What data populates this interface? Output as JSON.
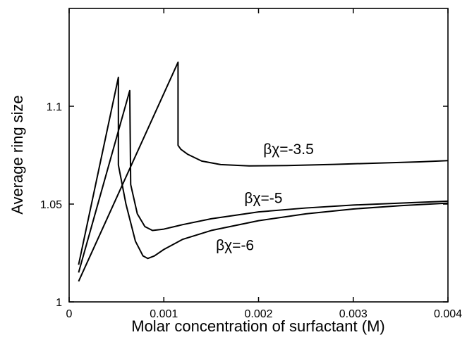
{
  "chart_data": {
    "type": "line",
    "title": "",
    "xlabel": "Molar concentration of surfactant (M)",
    "ylabel": "Average ring size",
    "xlim": [
      0,
      0.004
    ],
    "ylim": [
      1,
      1.15
    ],
    "xticks": [
      {
        "value": 0,
        "label": "0"
      },
      {
        "value": 0.001,
        "label": "0.001"
      },
      {
        "value": 0.002,
        "label": "0.002"
      },
      {
        "value": 0.003,
        "label": "0.003"
      },
      {
        "value": 0.004,
        "label": "0.004"
      }
    ],
    "yticks": [
      {
        "value": 1,
        "label": "1"
      },
      {
        "value": 1.05,
        "label": "1.05"
      },
      {
        "value": 1.1,
        "label": "1.1"
      }
    ],
    "grid": false,
    "legend": "none (curves labeled directly)",
    "line_color": "#000000",
    "series": [
      {
        "name": "βχ=-3.5",
        "label_anchor": {
          "x": 0.00205,
          "y": 1.0755
        },
        "points": [
          [
            0.0001,
            1.0105
          ],
          [
            0.00115,
            1.1225
          ],
          [
            0.00115,
            1.08
          ],
          [
            0.00118,
            1.078
          ],
          [
            0.00125,
            1.0755
          ],
          [
            0.0014,
            1.072
          ],
          [
            0.0016,
            1.0702
          ],
          [
            0.0019,
            1.0695
          ],
          [
            0.0023,
            1.0697
          ],
          [
            0.0028,
            1.0703
          ],
          [
            0.0033,
            1.071
          ],
          [
            0.0037,
            1.0716
          ],
          [
            0.004,
            1.0722
          ]
        ]
      },
      {
        "name": "βχ=-5",
        "label_anchor": {
          "x": 0.00185,
          "y": 1.0505
        },
        "points": [
          [
            0.0001,
            1.015
          ],
          [
            0.00064,
            1.108
          ],
          [
            0.00065,
            1.06
          ],
          [
            0.00072,
            1.045
          ],
          [
            0.0008,
            1.0385
          ],
          [
            0.00088,
            1.0365
          ],
          [
            0.001,
            1.0372
          ],
          [
            0.0012,
            1.0395
          ],
          [
            0.0015,
            1.0425
          ],
          [
            0.002,
            1.046
          ],
          [
            0.0025,
            1.048
          ],
          [
            0.003,
            1.0495
          ],
          [
            0.0035,
            1.0505
          ],
          [
            0.004,
            1.0515
          ]
        ]
      },
      {
        "name": "βχ=-6",
        "label_anchor": {
          "x": 0.00155,
          "y": 1.0265
        },
        "points": [
          [
            0.0001,
            1.019
          ],
          [
            0.00052,
            1.1148
          ],
          [
            0.00052,
            1.07
          ],
          [
            0.0006,
            1.05
          ],
          [
            0.0007,
            1.031
          ],
          [
            0.00078,
            1.0235
          ],
          [
            0.00083,
            1.0222
          ],
          [
            0.0009,
            1.0235
          ],
          [
            0.001,
            1.0268
          ],
          [
            0.0012,
            1.032
          ],
          [
            0.0015,
            1.0365
          ],
          [
            0.002,
            1.0415
          ],
          [
            0.0025,
            1.045
          ],
          [
            0.003,
            1.0475
          ],
          [
            0.0035,
            1.0492
          ],
          [
            0.004,
            1.0505
          ]
        ]
      }
    ]
  }
}
